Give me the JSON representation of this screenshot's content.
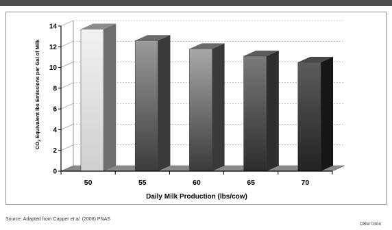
{
  "chart_data": {
    "type": "bar",
    "categories": [
      "50",
      "55",
      "60",
      "65",
      "70"
    ],
    "values": [
      13.7,
      12.6,
      11.8,
      11.1,
      10.5
    ],
    "xlabel": "Daily Milk Production (lbs/cow)",
    "ylabel_parts": [
      "CO",
      "2",
      " Equivalent lbs Emissions per Gal of Milk"
    ],
    "yticks": [
      "0",
      "2",
      "4",
      "6",
      "8",
      "10",
      "12",
      "14"
    ],
    "ylim": [
      0,
      14
    ],
    "grid": true,
    "style": "3d-columns",
    "colors": {
      "front_top": [
        "#f2f2f2",
        "#9a9a9a",
        "#a8a8a8",
        "#7a7a7a",
        "#5c5c5c"
      ],
      "front_bottom": [
        "#cfcfcf",
        "#3c3c3c",
        "#3a3a3a",
        "#2c2c2c",
        "#222222"
      ],
      "side": [
        "#6e6e6e",
        "#3a3a3a",
        "#3a3a3a",
        "#2e2e2e",
        "#161616"
      ],
      "top": [
        "#8c8c8c",
        "#6a6a6a",
        "#6a6a6a",
        "#5c5c5c",
        "#4a4a4a"
      ]
    }
  },
  "footer": {
    "source_prefix": "Source: Adapted from Capper ",
    "source_em": "et al.",
    "source_suffix": " (2008) PNAS",
    "code": "DBM 0304"
  }
}
